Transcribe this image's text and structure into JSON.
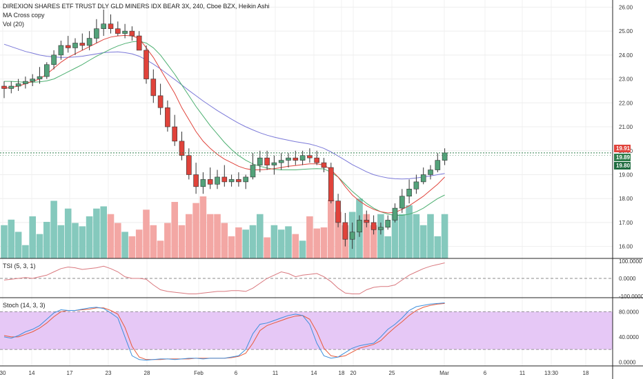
{
  "header": {
    "title": "DIREXION SHARES ETF TRUST DLY GLD MINERS IDX BEAR 3X, 240, Cboe BZX, Heikin Ashi",
    "indicator_ma": "MA Cross copy",
    "indicator_vol": "Vol (20)",
    "tsi_label": "TSI (5, 3, 1)",
    "stoch_label": "Stoch (14, 3, 3)"
  },
  "colors": {
    "up": "#53a27a",
    "down": "#e0433b",
    "vol_up": "#85c9bd",
    "vol_down": "#f3a7a4",
    "ma_fast": "#e0433b",
    "ma_mid": "#4caf70",
    "ma_slow": "#7a78d8",
    "tsi_line": "#d9777d",
    "stoch_k": "#3d8fdc",
    "stoch_d": "#e85a3a",
    "stoch_band": "#e6c8f6",
    "last_price": "#e0433b",
    "last_level": "#2e7d4b"
  },
  "chart_data": [
    {
      "type": "candlestick",
      "panel": "price",
      "title": "DIREXION SHARES ETF TRUST DLY GLD MINERS IDX BEAR 3X, 240, Cboe BZX, Heikin Ashi",
      "y_ticks": [
        "26.00",
        "25.00",
        "24.00",
        "23.00",
        "22.00",
        "21.00",
        "20.00",
        "19.00",
        "18.00",
        "17.00",
        "16.00"
      ],
      "ylim": [
        15.5,
        26.3
      ],
      "x_ticks": [
        "30",
        "14",
        "17",
        "23",
        "28",
        "Feb",
        "6",
        "11",
        "14",
        "18",
        "20",
        "25",
        "Mar",
        "6",
        "11",
        "13:30",
        "18"
      ],
      "ohlc": [
        [
          22.7,
          22.9,
          22.2,
          22.6
        ],
        [
          22.6,
          22.9,
          22.4,
          22.7
        ],
        [
          22.7,
          23.0,
          22.5,
          22.8
        ],
        [
          22.8,
          23.1,
          22.6,
          22.9
        ],
        [
          22.9,
          23.2,
          22.7,
          23.0
        ],
        [
          23.0,
          23.5,
          22.8,
          23.1
        ],
        [
          23.1,
          23.7,
          23.0,
          23.6
        ],
        [
          23.6,
          24.2,
          23.4,
          24.0
        ],
        [
          24.0,
          24.6,
          23.8,
          24.4
        ],
        [
          24.4,
          24.8,
          24.1,
          24.3
        ],
        [
          24.3,
          24.7,
          24.0,
          24.5
        ],
        [
          24.5,
          24.9,
          24.2,
          24.4
        ],
        [
          24.4,
          25.0,
          24.2,
          24.7
        ],
        [
          24.7,
          25.5,
          24.5,
          25.1
        ],
        [
          25.1,
          25.9,
          24.8,
          25.3
        ],
        [
          25.3,
          25.7,
          24.9,
          25.1
        ],
        [
          25.1,
          25.4,
          24.8,
          24.9
        ],
        [
          24.9,
          25.3,
          24.7,
          25.0
        ],
        [
          25.0,
          25.2,
          24.6,
          24.8
        ],
        [
          24.8,
          25.0,
          24.3,
          24.2
        ],
        [
          24.2,
          24.4,
          22.8,
          23.0
        ],
        [
          23.0,
          23.4,
          22.0,
          22.3
        ],
        [
          22.3,
          22.8,
          21.5,
          21.8
        ],
        [
          21.8,
          22.1,
          20.8,
          21.0
        ],
        [
          21.0,
          21.5,
          20.2,
          20.4
        ],
        [
          20.4,
          20.8,
          19.6,
          19.8
        ],
        [
          19.8,
          20.1,
          18.8,
          19.0
        ],
        [
          19.0,
          19.5,
          18.2,
          18.5
        ],
        [
          18.5,
          19.1,
          18.2,
          18.8
        ],
        [
          18.8,
          19.3,
          18.4,
          18.6
        ],
        [
          18.6,
          19.2,
          18.4,
          18.9
        ],
        [
          18.9,
          19.4,
          18.5,
          18.7
        ],
        [
          18.7,
          19.0,
          18.5,
          18.8
        ],
        [
          18.8,
          19.1,
          18.5,
          18.7
        ],
        [
          18.7,
          19.0,
          18.4,
          18.9
        ],
        [
          18.9,
          19.9,
          18.8,
          19.4
        ],
        [
          19.4,
          20.0,
          19.1,
          19.7
        ],
        [
          19.7,
          20.0,
          19.2,
          19.4
        ],
        [
          19.4,
          19.8,
          19.0,
          19.5
        ],
        [
          19.5,
          19.9,
          19.2,
          19.6
        ],
        [
          19.6,
          19.9,
          19.3,
          19.7
        ],
        [
          19.7,
          20.0,
          19.4,
          19.6
        ],
        [
          19.6,
          20.0,
          19.4,
          19.8
        ],
        [
          19.8,
          20.1,
          19.5,
          19.7
        ],
        [
          19.7,
          20.0,
          19.4,
          19.5
        ],
        [
          19.5,
          19.7,
          19.1,
          19.3
        ],
        [
          19.3,
          19.5,
          17.8,
          17.9
        ],
        [
          17.9,
          18.2,
          16.8,
          17.0
        ],
        [
          17.0,
          17.4,
          16.0,
          16.3
        ],
        [
          16.3,
          17.0,
          15.9,
          16.6
        ],
        [
          16.6,
          17.3,
          16.4,
          17.1
        ],
        [
          17.1,
          17.5,
          16.8,
          17.0
        ],
        [
          17.0,
          17.3,
          16.5,
          16.7
        ],
        [
          16.7,
          17.0,
          16.5,
          16.8
        ],
        [
          16.8,
          17.3,
          16.7,
          17.1
        ],
        [
          17.1,
          17.8,
          17.0,
          17.6
        ],
        [
          17.6,
          18.4,
          17.4,
          18.1
        ],
        [
          18.1,
          18.8,
          17.8,
          18.4
        ],
        [
          18.4,
          19.0,
          18.2,
          18.7
        ],
        [
          18.7,
          19.3,
          18.6,
          19.0
        ],
        [
          19.0,
          19.4,
          18.8,
          19.2
        ],
        [
          19.2,
          19.9,
          19.1,
          19.6
        ],
        [
          19.6,
          20.1,
          19.4,
          19.91
        ]
      ],
      "volume": [
        30,
        35,
        24,
        12,
        38,
        22,
        33,
        52,
        30,
        45,
        32,
        29,
        38,
        45,
        47,
        40,
        32,
        24,
        20,
        26,
        44,
        30,
        16,
        32,
        51,
        30,
        40,
        50,
        56,
        40,
        40,
        32,
        20,
        28,
        26,
        30,
        40,
        19,
        30,
        26,
        29,
        22,
        16,
        38,
        27,
        28,
        53,
        42,
        30,
        42,
        54,
        40,
        30,
        40,
        20,
        40,
        40,
        48,
        40,
        30,
        40,
        20,
        40
      ],
      "volume_up": [
        1,
        1,
        1,
        1,
        1,
        1,
        1,
        1,
        1,
        1,
        1,
        1,
        1,
        1,
        1,
        0,
        0,
        1,
        0,
        0,
        0,
        0,
        0,
        0,
        0,
        0,
        0,
        0,
        0,
        0,
        0,
        0,
        0,
        0,
        1,
        1,
        1,
        0,
        1,
        1,
        1,
        0,
        1,
        0,
        0,
        0,
        0,
        0,
        0,
        1,
        1,
        0,
        0,
        1,
        1,
        1,
        1,
        1,
        1,
        1,
        1,
        1,
        1
      ],
      "ma_fast": [
        22.6,
        22.65,
        22.7,
        22.8,
        22.9,
        23.0,
        23.2,
        23.45,
        23.7,
        23.9,
        24.05,
        24.2,
        24.35,
        24.5,
        24.65,
        24.75,
        24.8,
        24.82,
        24.8,
        24.7,
        24.3,
        23.9,
        23.4,
        22.9,
        22.4,
        21.8,
        21.3,
        20.8,
        20.4,
        20.1,
        19.85,
        19.65,
        19.5,
        19.35,
        19.25,
        19.2,
        19.2,
        19.22,
        19.25,
        19.3,
        19.35,
        19.38,
        19.42,
        19.45,
        19.45,
        19.4,
        19.2,
        18.9,
        18.5,
        18.15,
        17.9,
        17.7,
        17.55,
        17.45,
        17.4,
        17.42,
        17.55,
        17.7,
        17.9,
        18.1,
        18.35,
        18.6,
        18.9
      ],
      "ma_mid": [
        22.9,
        22.9,
        22.88,
        22.86,
        22.86,
        22.88,
        22.92,
        23.0,
        23.15,
        23.3,
        23.45,
        23.6,
        23.78,
        23.95,
        24.1,
        24.25,
        24.38,
        24.48,
        24.55,
        24.58,
        24.5,
        24.3,
        24.0,
        23.6,
        23.2,
        22.75,
        22.3,
        21.85,
        21.45,
        21.05,
        20.7,
        20.35,
        20.05,
        19.8,
        19.6,
        19.45,
        19.35,
        19.28,
        19.22,
        19.2,
        19.2,
        19.2,
        19.22,
        19.24,
        19.25,
        19.24,
        19.1,
        18.9,
        18.6,
        18.3,
        18.05,
        17.8,
        17.6,
        17.45,
        17.35,
        17.3,
        17.3,
        17.35,
        17.45,
        17.6,
        17.8,
        18.0,
        18.15
      ],
      "ma_slow": [
        24.45,
        24.35,
        24.25,
        24.15,
        24.08,
        24.0,
        23.95,
        23.92,
        23.9,
        23.9,
        23.92,
        23.95,
        24.0,
        24.05,
        24.1,
        24.12,
        24.13,
        24.1,
        24.05,
        23.95,
        23.8,
        23.62,
        23.42,
        23.2,
        22.98,
        22.75,
        22.52,
        22.3,
        22.08,
        21.88,
        21.68,
        21.5,
        21.32,
        21.15,
        21.0,
        20.87,
        20.75,
        20.65,
        20.57,
        20.5,
        20.44,
        20.38,
        20.33,
        20.28,
        20.2,
        20.1,
        19.95,
        19.78,
        19.6,
        19.42,
        19.27,
        19.12,
        19.0,
        18.92,
        18.86,
        18.83,
        18.82,
        18.83,
        18.86,
        18.9,
        18.95,
        19.0,
        19.05
      ],
      "last_price": "19.91",
      "price_tags": [
        "19.89",
        "19.80"
      ]
    },
    {
      "type": "line",
      "panel": "tsi",
      "title": "TSI (5, 3, 1)",
      "y_ticks": [
        "100.0000",
        "0.0000",
        "-100.0000"
      ],
      "ylim": [
        -110,
        110
      ],
      "values": [
        -10,
        -5,
        0,
        5,
        0,
        10,
        20,
        40,
        60,
        70,
        65,
        55,
        60,
        65,
        75,
        60,
        40,
        10,
        0,
        0,
        -5,
        -40,
        -70,
        -80,
        -85,
        -90,
        -95,
        -95,
        -90,
        -85,
        -80,
        -80,
        -75,
        -75,
        -80,
        -60,
        -30,
        0,
        20,
        40,
        30,
        10,
        20,
        25,
        30,
        10,
        -20,
        -60,
        -90,
        -95,
        -95,
        -70,
        -55,
        -50,
        -50,
        -40,
        -10,
        20,
        40,
        60,
        75,
        85,
        95
      ]
    },
    {
      "type": "line",
      "panel": "stoch",
      "title": "Stoch (14, 3, 3)",
      "y_ticks": [
        "80.0000",
        "40.0000",
        "0.0000"
      ],
      "ylim": [
        -5,
        100
      ],
      "band": [
        20,
        80
      ],
      "series": [
        {
          "name": "%K",
          "values": [
            40,
            38,
            42,
            48,
            52,
            58,
            68,
            78,
            83,
            82,
            82,
            84,
            86,
            87,
            85,
            78,
            70,
            40,
            10,
            4,
            3,
            4,
            5,
            5,
            4,
            5,
            6,
            6,
            5,
            6,
            6,
            6,
            8,
            10,
            20,
            45,
            60,
            62,
            66,
            70,
            74,
            76,
            74,
            60,
            30,
            10,
            6,
            8,
            15,
            22,
            26,
            28,
            30,
            40,
            52,
            60,
            70,
            82,
            88,
            90,
            92,
            93,
            94
          ]
        },
        {
          "name": "%D",
          "values": [
            42,
            40,
            40,
            44,
            48,
            54,
            62,
            72,
            80,
            82,
            82,
            83,
            84,
            86,
            86,
            82,
            76,
            55,
            25,
            8,
            4,
            4,
            4,
            5,
            5,
            5,
            5,
            6,
            6,
            6,
            6,
            6,
            7,
            9,
            14,
            30,
            50,
            58,
            62,
            66,
            70,
            73,
            74,
            68,
            48,
            22,
            10,
            8,
            10,
            16,
            22,
            25,
            28,
            34,
            45,
            55,
            64,
            74,
            82,
            87,
            90,
            92,
            93
          ]
        }
      ]
    }
  ]
}
